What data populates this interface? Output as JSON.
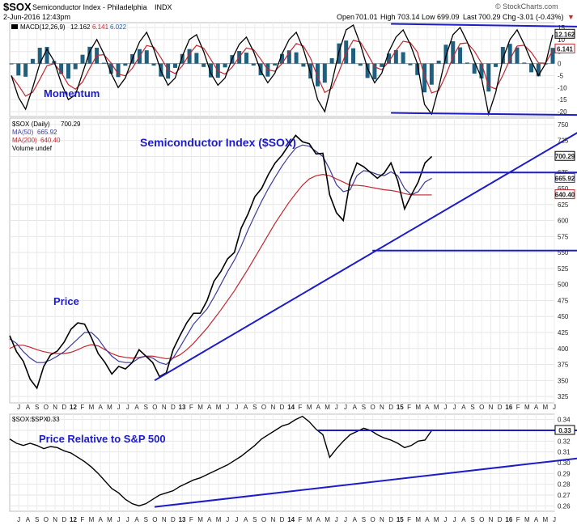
{
  "header": {
    "symbol": "$SOX",
    "name": "Semiconductor Index - Philadelphia",
    "exchange": "INDX",
    "datetime": "2-Jun-2016 12:43pm",
    "open_label": "Open",
    "open": "701.01",
    "high_label": "High",
    "high": "703.14",
    "low_label": "Low",
    "low": "699.09",
    "last_label": "Last",
    "last": "700.29",
    "chg_label": "Chg",
    "chg": "-3.01 (-0.43%)",
    "chg_marker": "▼",
    "credit": "© StockCharts.com"
  },
  "colors": {
    "annotation": "#1c1cc8",
    "ma50": "#3b3b9c",
    "ma200": "#c02830",
    "macd": "#000000",
    "signal": "#c02830",
    "histogram": "#1f5f7f",
    "price": "#000000"
  },
  "chart_data": [
    {
      "type": "line",
      "panel": "MACD",
      "legend": {
        "macd_label": "MACD(12,26,9)",
        "macd_value": "12.162",
        "signal_value": "6.141",
        "hist_value": "6.022"
      },
      "annotation": "Momentum",
      "yticks": [
        15,
        10,
        5,
        0,
        -5,
        -10,
        -15,
        -20
      ],
      "ylim": [
        -22,
        17
      ],
      "value_badges": [
        "12.162",
        "6.141"
      ],
      "points_per_period": 1,
      "macd": [
        -5,
        -14,
        -19,
        -10,
        0,
        6,
        1,
        -8,
        -15,
        -13,
        -4,
        5,
        10,
        4,
        -4,
        -10,
        -6,
        2,
        9,
        13,
        6,
        -3,
        -9,
        -6,
        3,
        10,
        12,
        5,
        -4,
        -9,
        -6,
        2,
        8,
        11,
        5,
        -3,
        -8,
        -4,
        4,
        10,
        13,
        6,
        -4,
        -15,
        -20,
        -8,
        5,
        14,
        16,
        8,
        -2,
        -8,
        -4,
        5,
        11,
        14,
        8,
        0,
        -17,
        -21,
        -10,
        3,
        12,
        15,
        9,
        1,
        -6,
        -21,
        -12,
        2,
        10,
        14,
        8,
        1,
        -5,
        0,
        12
      ]
    },
    {
      "type": "line",
      "panel": "Price",
      "legend": {
        "price_label": "$SOX (Daily)",
        "price_value": "700.29",
        "ma50_label": "MA(50)",
        "ma50_value": "665.92",
        "ma200_label": "MA(200)",
        "ma200_value": "640.40",
        "volume_label": "Volume undef"
      },
      "title": "Semiconductor Index ($SOX)",
      "annotation": "Price",
      "yticks": [
        750,
        725,
        700,
        675,
        650,
        625,
        600,
        575,
        550,
        525,
        500,
        475,
        450,
        425,
        400,
        375,
        350,
        325
      ],
      "ylim": [
        315,
        760
      ],
      "value_badges": [
        "700.29",
        "665.92",
        "640.40"
      ],
      "x_start_year": 2011.5,
      "x_step_years": 0.0625,
      "price": [
        420,
        395,
        380,
        352,
        338,
        372,
        390,
        396,
        410,
        430,
        440,
        438,
        417,
        392,
        378,
        360,
        372,
        368,
        378,
        398,
        388,
        378,
        356,
        362,
        398,
        420,
        440,
        455,
        455,
        475,
        505,
        520,
        540,
        550,
        588,
        610,
        637,
        650,
        672,
        690,
        702,
        718,
        733,
        723,
        720,
        704,
        705,
        640,
        612,
        600,
        662,
        690,
        684,
        675,
        666,
        674,
        690,
        662,
        618,
        640,
        660,
        690,
        700
      ],
      "ma50": [
        415,
        408,
        395,
        385,
        378,
        378,
        382,
        388,
        395,
        405,
        415,
        425,
        425,
        415,
        400,
        388,
        380,
        378,
        378,
        385,
        388,
        385,
        378,
        375,
        385,
        402,
        420,
        438,
        450,
        462,
        480,
        500,
        520,
        538,
        560,
        585,
        608,
        630,
        650,
        668,
        685,
        700,
        713,
        718,
        716,
        708,
        700,
        680,
        656,
        645,
        648,
        670,
        678,
        676,
        672,
        670,
        676,
        670,
        650,
        640,
        645,
        660,
        666
      ],
      "ma200": [
        400,
        405,
        405,
        402,
        398,
        395,
        393,
        392,
        392,
        394,
        398,
        403,
        406,
        404,
        398,
        392,
        388,
        386,
        385,
        386,
        388,
        388,
        386,
        384,
        385,
        390,
        398,
        408,
        420,
        432,
        446,
        460,
        475,
        490,
        507,
        524,
        542,
        560,
        578,
        596,
        612,
        628,
        642,
        655,
        665,
        670,
        672,
        670,
        665,
        660,
        655,
        655,
        654,
        652,
        650,
        648,
        647,
        645,
        642,
        640,
        640,
        640,
        640
      ],
      "trendlines": [
        {
          "from": [
            2012.83,
            350
          ],
          "to": [
            2016.97,
            763
          ]
        },
        {
          "from": [
            2014.83,
            553
          ],
          "to": [
            2016.97,
            553
          ]
        },
        {
          "from": [
            2015.08,
            675
          ],
          "to": [
            2016.97,
            675
          ]
        }
      ]
    },
    {
      "type": "line",
      "panel": "Relative",
      "legend": {
        "label": "$SOX:$SPX",
        "value": "0.33"
      },
      "annotation": "Price Relative to S&P 500",
      "yticks": [
        0.34,
        0.33,
        0.32,
        0.31,
        0.3,
        0.29,
        0.28,
        0.27,
        0.26
      ],
      "ylim": [
        0.255,
        0.345
      ],
      "value_badges": [
        "0.33"
      ],
      "x_start_year": 2011.5,
      "x_step_years": 0.0625,
      "ratio": [
        0.322,
        0.318,
        0.316,
        0.318,
        0.316,
        0.313,
        0.315,
        0.314,
        0.311,
        0.309,
        0.305,
        0.301,
        0.296,
        0.29,
        0.283,
        0.276,
        0.272,
        0.266,
        0.262,
        0.26,
        0.262,
        0.266,
        0.27,
        0.272,
        0.274,
        0.278,
        0.281,
        0.284,
        0.286,
        0.289,
        0.292,
        0.295,
        0.298,
        0.302,
        0.306,
        0.311,
        0.316,
        0.322,
        0.326,
        0.33,
        0.334,
        0.336,
        0.34,
        0.343,
        0.338,
        0.331,
        0.326,
        0.305,
        0.313,
        0.32,
        0.326,
        0.329,
        0.332,
        0.33,
        0.326,
        0.323,
        0.321,
        0.318,
        0.314,
        0.316,
        0.32,
        0.321,
        0.33
      ],
      "trendlines": [
        {
          "from": [
            2012.83,
            0.259
          ],
          "to": [
            2016.97,
            0.307
          ]
        },
        {
          "from": [
            2014.33,
            0.33
          ],
          "to": [
            2016.97,
            0.33
          ]
        }
      ]
    }
  ],
  "x_axis": {
    "labels": [
      {
        "t": 2011.583,
        "label": "J"
      },
      {
        "t": 2011.667,
        "label": "A"
      },
      {
        "t": 2011.75,
        "label": "S"
      },
      {
        "t": 2011.833,
        "label": "O"
      },
      {
        "t": 2011.917,
        "label": "N"
      },
      {
        "t": 2012.0,
        "label": "D"
      },
      {
        "t": 2012.083,
        "label": "12",
        "bold": true
      },
      {
        "t": 2012.167,
        "label": "F"
      },
      {
        "t": 2012.25,
        "label": "M"
      },
      {
        "t": 2012.333,
        "label": "A"
      },
      {
        "t": 2012.417,
        "label": "M"
      },
      {
        "t": 2012.5,
        "label": "J"
      },
      {
        "t": 2012.583,
        "label": "J"
      },
      {
        "t": 2012.667,
        "label": "A"
      },
      {
        "t": 2012.75,
        "label": "S"
      },
      {
        "t": 2012.833,
        "label": "O"
      },
      {
        "t": 2012.917,
        "label": "N"
      },
      {
        "t": 2013.0,
        "label": "D"
      },
      {
        "t": 2013.083,
        "label": "13",
        "bold": true
      },
      {
        "t": 2013.167,
        "label": "F"
      },
      {
        "t": 2013.25,
        "label": "M"
      },
      {
        "t": 2013.333,
        "label": "A"
      },
      {
        "t": 2013.417,
        "label": "M"
      },
      {
        "t": 2013.5,
        "label": "J"
      },
      {
        "t": 2013.583,
        "label": "J"
      },
      {
        "t": 2013.667,
        "label": "A"
      },
      {
        "t": 2013.75,
        "label": "S"
      },
      {
        "t": 2013.833,
        "label": "O"
      },
      {
        "t": 2013.917,
        "label": "N"
      },
      {
        "t": 2014.0,
        "label": "D"
      },
      {
        "t": 2014.083,
        "label": "14",
        "bold": true
      },
      {
        "t": 2014.167,
        "label": "F"
      },
      {
        "t": 2014.25,
        "label": "M"
      },
      {
        "t": 2014.333,
        "label": "A"
      },
      {
        "t": 2014.417,
        "label": "M"
      },
      {
        "t": 2014.5,
        "label": "J"
      },
      {
        "t": 2014.583,
        "label": "J"
      },
      {
        "t": 2014.667,
        "label": "A"
      },
      {
        "t": 2014.75,
        "label": "S"
      },
      {
        "t": 2014.833,
        "label": "O"
      },
      {
        "t": 2014.917,
        "label": "N"
      },
      {
        "t": 2015.0,
        "label": "D"
      },
      {
        "t": 2015.083,
        "label": "15",
        "bold": true
      },
      {
        "t": 2015.167,
        "label": "F"
      },
      {
        "t": 2015.25,
        "label": "M"
      },
      {
        "t": 2015.333,
        "label": "A"
      },
      {
        "t": 2015.417,
        "label": "M"
      },
      {
        "t": 2015.5,
        "label": "J"
      },
      {
        "t": 2015.583,
        "label": "J"
      },
      {
        "t": 2015.667,
        "label": "A"
      },
      {
        "t": 2015.75,
        "label": "S"
      },
      {
        "t": 2015.833,
        "label": "O"
      },
      {
        "t": 2015.917,
        "label": "N"
      },
      {
        "t": 2016.0,
        "label": "D"
      },
      {
        "t": 2016.083,
        "label": "16",
        "bold": true
      },
      {
        "t": 2016.167,
        "label": "F"
      },
      {
        "t": 2016.25,
        "label": "M"
      },
      {
        "t": 2016.333,
        "label": "A"
      },
      {
        "t": 2016.417,
        "label": "M"
      },
      {
        "t": 2016.5,
        "label": "J"
      }
    ]
  }
}
